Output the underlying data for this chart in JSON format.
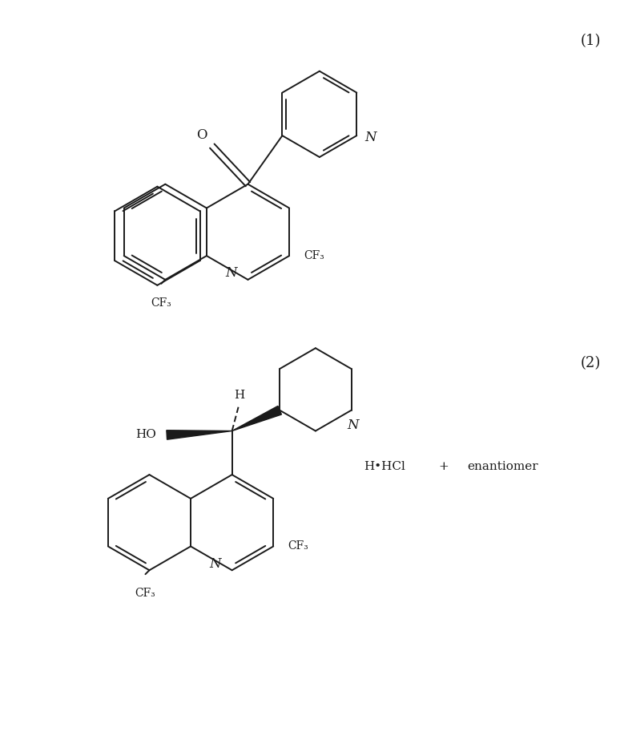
{
  "figsize": [
    7.79,
    9.38
  ],
  "dpi": 100,
  "bg_color": "#ffffff",
  "line_color": "#1a1a1a",
  "lw": 1.4,
  "lw_bold": 5.0,
  "font_size_label": 13,
  "font_size_atom": 11,
  "font_size_cf3": 10,
  "label1": "(1)",
  "label2": "(2)",
  "text_O": "O",
  "text_N": "N",
  "text_CF3": "CF₃",
  "text_HO": "HO",
  "text_H": "H",
  "text_hcl": "H•HCl",
  "text_plus": "+",
  "text_enantiomer": "enantiomer"
}
